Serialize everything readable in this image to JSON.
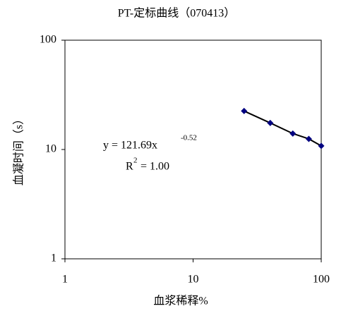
{
  "chart_data": {
    "type": "scatter",
    "title": "PT-定标曲线（070413）",
    "x_label": "血浆稀释%",
    "y_label": "血凝时间（s）",
    "x": [
      25,
      40,
      60,
      80,
      100
    ],
    "series": [
      {
        "name": "PT",
        "color": "#000080",
        "values": [
          22.5,
          17.5,
          14,
          12.5,
          10.8
        ]
      }
    ],
    "trendline_color": "#000000",
    "xlim": [
      1,
      100
    ],
    "ylim": [
      1,
      100
    ],
    "xticks": [
      1,
      10,
      100
    ],
    "yticks": [
      1,
      10,
      100
    ],
    "xscale": "log",
    "yscale": "log",
    "grid": false,
    "annotations": [
      {
        "base": "y = 121.69x",
        "sup": "-0.52"
      },
      {
        "base": "R",
        "sup": "2",
        "rest": " = 1.00"
      }
    ]
  }
}
